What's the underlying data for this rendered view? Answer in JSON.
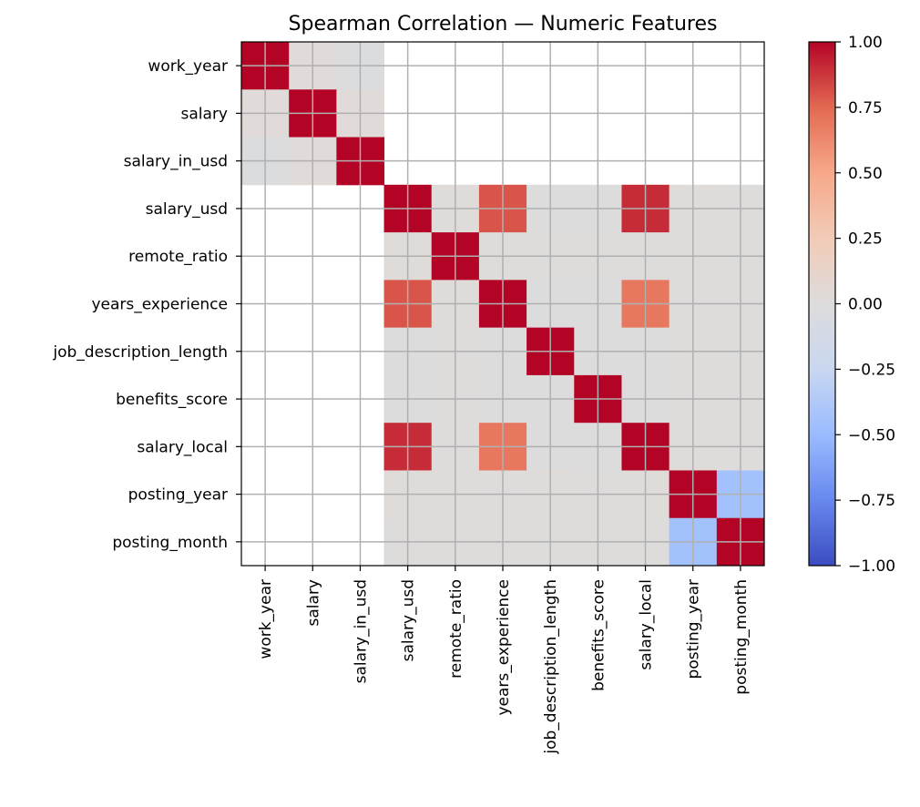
{
  "chart_data": {
    "type": "heatmap",
    "title": "Spearman Correlation — Numeric Features",
    "labels": [
      "work_year",
      "salary",
      "salary_in_usd",
      "salary_usd",
      "remote_ratio",
      "years_experience",
      "job_description_length",
      "benefits_score",
      "salary_local",
      "posting_year",
      "posting_month"
    ],
    "matrix": [
      [
        1.0,
        0.03,
        -0.02,
        null,
        null,
        null,
        null,
        null,
        null,
        null,
        null
      ],
      [
        0.03,
        1.0,
        0.03,
        null,
        null,
        null,
        null,
        null,
        null,
        null,
        null
      ],
      [
        -0.02,
        0.03,
        1.0,
        null,
        null,
        null,
        null,
        null,
        null,
        null,
        null
      ],
      [
        null,
        null,
        null,
        1.0,
        0.02,
        0.8,
        -0.01,
        -0.01,
        0.9,
        0.02,
        0.01
      ],
      [
        null,
        null,
        null,
        0.02,
        1.0,
        0.02,
        0.01,
        0.01,
        0.01,
        0.02,
        0.01
      ],
      [
        null,
        null,
        null,
        0.8,
        0.02,
        1.0,
        -0.01,
        0.0,
        0.69,
        0.01,
        0.01
      ],
      [
        null,
        null,
        null,
        -0.01,
        0.01,
        -0.01,
        1.0,
        0.0,
        -0.01,
        0.02,
        0.01
      ],
      [
        null,
        null,
        null,
        -0.01,
        0.01,
        0.0,
        0.0,
        1.0,
        0.0,
        0.01,
        0.01
      ],
      [
        null,
        null,
        null,
        0.9,
        0.01,
        0.69,
        -0.01,
        0.0,
        1.0,
        0.02,
        0.01
      ],
      [
        null,
        null,
        null,
        0.02,
        0.02,
        0.01,
        0.02,
        0.01,
        0.02,
        1.0,
        -0.45
      ],
      [
        null,
        null,
        null,
        0.01,
        0.01,
        0.01,
        0.01,
        0.01,
        0.01,
        -0.45,
        1.0
      ]
    ],
    "colormap": "coolwarm",
    "vmin": -1.0,
    "vmax": 1.0,
    "colorbar_ticks": [
      "1.00",
      "0.75",
      "0.50",
      "0.25",
      "0.00",
      "−0.25",
      "−0.50",
      "−0.75",
      "−1.00"
    ],
    "colorbar_tick_values": [
      1.0,
      0.75,
      0.5,
      0.25,
      0.0,
      -0.25,
      -0.5,
      -0.75,
      -1.0
    ],
    "grid": true,
    "colors": {
      "grid": "#b0b0b0",
      "axes": "#000000",
      "coolwarm_stops": [
        "#3b4cc0",
        "#6788ee",
        "#9abbff",
        "#c9d7f0",
        "#dddcdc",
        "#f2cbb7",
        "#f7a889",
        "#e26952",
        "#b40426"
      ]
    }
  }
}
